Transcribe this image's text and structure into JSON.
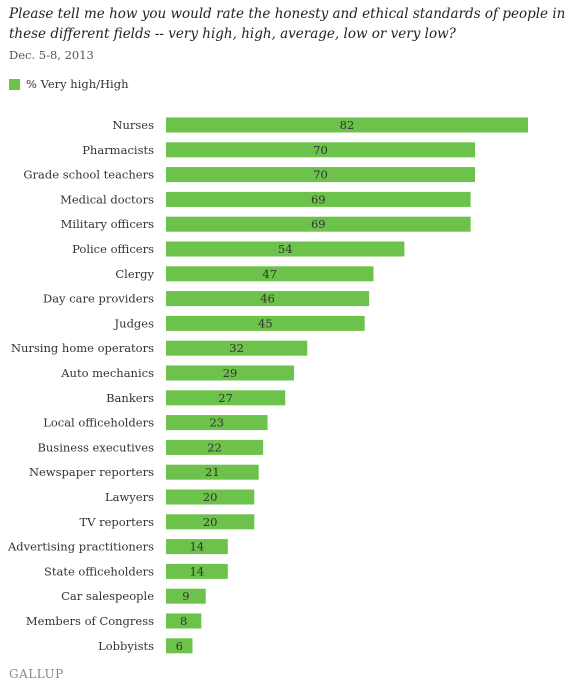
{
  "chart_data": {
    "type": "bar",
    "orientation": "horizontal",
    "title": "Please tell me how you would rate the honesty and ethical standards of people in these different fields -- very high, high, average, low or very low?",
    "subtitle": "Dec. 5-8, 2013",
    "legend_position": "top-left",
    "series": [
      {
        "name": "% Very high/High",
        "color": "#6cc24a",
        "values": [
          82,
          70,
          70,
          69,
          69,
          54,
          47,
          46,
          45,
          32,
          29,
          27,
          23,
          22,
          21,
          20,
          20,
          14,
          14,
          9,
          8,
          6
        ]
      }
    ],
    "categories": [
      "Nurses",
      "Pharmacists",
      "Grade school teachers",
      "Medical doctors",
      "Military officers",
      "Police officers",
      "Clergy",
      "Day care providers",
      "Judges",
      "Nursing home operators",
      "Auto mechanics",
      "Bankers",
      "Local officeholders",
      "Business executives",
      "Newspaper reporters",
      "Lawyers",
      "TV reporters",
      "Advertising practitioners",
      "State officeholders",
      "Car salespeople",
      "Members of Congress",
      "Lobbyists"
    ],
    "xlim": [
      0,
      82
    ],
    "grid": false
  },
  "source": {
    "logo_text": "GALLUP"
  }
}
